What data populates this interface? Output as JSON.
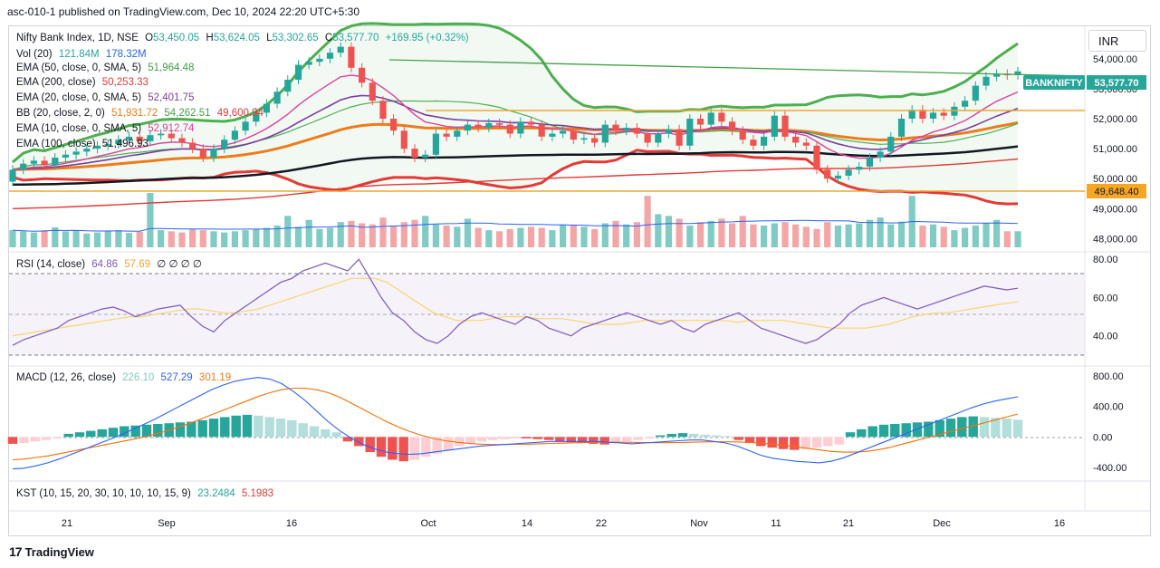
{
  "header": "asc-010-1 published on TradingView.com, Dec 10, 2024 22:20 UTC+5:30",
  "currency": "INR",
  "footer": {
    "brand": "TradingView"
  },
  "legends": {
    "main": {
      "title": "Nifty Bank Index, 1D, NSE",
      "o_label": "O",
      "o": "53,450.05",
      "h_label": "H",
      "h": "53,624.05",
      "l_label": "L",
      "l": "53,302.65",
      "c_label": "C",
      "c": "53,577.70",
      "chg": "+169.95 (+0.32%)"
    },
    "vol": {
      "label": "Vol (20)",
      "v1": "121.84M",
      "v2": "178.32M"
    },
    "ema50": {
      "label": "EMA (50, close, 0, SMA, 5)",
      "v": "51,964.48"
    },
    "ema200": {
      "label": "EMA (200, close)",
      "v": "50,253.33"
    },
    "ema20": {
      "label": "EMA (20, close, 0, SMA, 5)",
      "v": "52,401.75"
    },
    "bb": {
      "label": "BB (20, close, 2, 0)",
      "v1": "51,931.72",
      "v2": "54,262.51",
      "v3": "49,600.94"
    },
    "ema10": {
      "label": "EMA (10, close, 0, SMA, 5)",
      "v": "52,912.74"
    },
    "ema100": {
      "label": "EMA (100, close)",
      "v": "51,496.93"
    },
    "rsi": {
      "label": "RSI (14, close)",
      "v1": "64.86",
      "v2": "57.69",
      "extra": "∅ ∅ ∅ ∅"
    },
    "macd": {
      "label": "MACD (12, 26, close)",
      "v1": "226.10",
      "v2": "527.29",
      "v3": "301.19"
    },
    "kst": {
      "label": "KST (10, 15, 20, 30, 10, 10, 10, 15, 9)",
      "v1": "23.2484",
      "v2": "5.1983"
    }
  },
  "badges": {
    "symbol": "BANKNIFTY",
    "price": "53,577.70",
    "support": "49,648.40"
  },
  "colors": {
    "up": "#26a69a",
    "down": "#ef5350",
    "ema10": "#e040a0",
    "ema20": "#7b3fa0",
    "ema50": "#ef7c1a",
    "ema100": "#131722",
    "ema200": "#e53935",
    "bb_band": "#4caf50",
    "rsi": "#7e57c2",
    "macd": "#2962ff",
    "signal": "#ff6d00"
  },
  "chart_data": {
    "type": "candlestick",
    "x_axis": {
      "ticks": [
        "21",
        "Sep",
        "16",
        "Oct",
        "14",
        "22",
        "Nov",
        "11",
        "21",
        "Dec",
        "16"
      ]
    },
    "price_axis": {
      "ticks": [
        "54,000.00",
        "53,000.00",
        "52,000.00",
        "51,000.00",
        "50,000.00",
        "49,000.00",
        "48,000.00"
      ],
      "range": [
        47800,
        54600
      ]
    },
    "rsi_axis": {
      "ticks": [
        "80.00",
        "60.00",
        "40.00"
      ],
      "range": [
        28,
        82
      ]
    },
    "macd_axis": {
      "ticks": [
        "800.00",
        "400.00",
        "0.00",
        "-400.00"
      ],
      "range": [
        -520,
        860
      ]
    },
    "closes": [
      50300,
      50500,
      50600,
      50450,
      50700,
      50800,
      50900,
      51000,
      51100,
      51150,
      51300,
      51400,
      51250,
      51450,
      51500,
      51350,
      51200,
      51000,
      50700,
      51000,
      51300,
      51600,
      51900,
      52200,
      52500,
      52900,
      53300,
      53800,
      53900,
      54000,
      54200,
      54400,
      53700,
      53200,
      52600,
      52000,
      51600,
      51000,
      50700,
      50800,
      51500,
      51400,
      51600,
      51800,
      51700,
      51850,
      51800,
      51500,
      51900,
      51800,
      51400,
      51500,
      51600,
      51300,
      51350,
      51200,
      51800,
      51600,
      51700,
      51500,
      51200,
      51500,
      51650,
      51100,
      52000,
      51800,
      52200,
      51900,
      51600,
      51300,
      51100,
      51400,
      52100,
      51400,
      51200,
      51100,
      50300,
      50000,
      50100,
      50300,
      50400,
      50700,
      50900,
      51400,
      52000,
      52300,
      52000,
      52200,
      52100,
      52400,
      52600,
      53100,
      53400,
      53500,
      53450,
      53577.7
    ],
    "opens": [
      49900,
      50300,
      50500,
      50600,
      50450,
      50700,
      50800,
      50900,
      51000,
      51100,
      51150,
      51300,
      51400,
      51250,
      51450,
      51500,
      51350,
      51200,
      51000,
      50700,
      51000,
      51300,
      51600,
      51900,
      52200,
      52500,
      52900,
      53300,
      53800,
      53900,
      54000,
      54200,
      54400,
      53700,
      53200,
      52600,
      52000,
      51600,
      51000,
      50700,
      50800,
      51500,
      51400,
      51600,
      51800,
      51700,
      51850,
      51800,
      51500,
      51900,
      51800,
      51400,
      51500,
      51600,
      51300,
      51350,
      51200,
      51800,
      51600,
      51700,
      51500,
      51200,
      51500,
      51650,
      51100,
      52000,
      51800,
      52200,
      51900,
      51600,
      51300,
      51100,
      51400,
      52100,
      51400,
      51200,
      51100,
      50300,
      50000,
      50100,
      50300,
      50400,
      50700,
      50900,
      51400,
      52000,
      52300,
      52000,
      52200,
      52100,
      52400,
      52600,
      53100,
      53400,
      53500,
      53450.05
    ],
    "volume": [
      30,
      28,
      26,
      30,
      35,
      28,
      30,
      24,
      26,
      28,
      30,
      25,
      27,
      95,
      30,
      28,
      26,
      32,
      30,
      28,
      26,
      28,
      30,
      32,
      34,
      38,
      55,
      36,
      48,
      32,
      34,
      44,
      46,
      42,
      40,
      52,
      38,
      44,
      48,
      55,
      40,
      38,
      36,
      50,
      34,
      30,
      28,
      32,
      34,
      36,
      34,
      30,
      40,
      38,
      36,
      32,
      42,
      46,
      40,
      44,
      90,
      58,
      55,
      50,
      38,
      44,
      46,
      50,
      42,
      55,
      40,
      38,
      42,
      44,
      40,
      36,
      32,
      44,
      38,
      40,
      42,
      48,
      52,
      40,
      45,
      90,
      38,
      40,
      36,
      30,
      34,
      38,
      42,
      48,
      28,
      28
    ],
    "rsi": [
      35,
      38,
      40,
      42,
      44,
      48,
      50,
      52,
      54,
      55,
      53,
      50,
      52,
      54,
      55,
      56,
      50,
      45,
      42,
      48,
      52,
      56,
      60,
      64,
      68,
      70,
      74,
      76,
      78,
      76,
      74,
      80,
      70,
      60,
      52,
      48,
      42,
      38,
      36,
      40,
      46,
      50,
      52,
      50,
      48,
      46,
      50,
      48,
      44,
      42,
      40,
      44,
      46,
      48,
      50,
      52,
      50,
      48,
      46,
      48,
      44,
      42,
      46,
      48,
      50,
      52,
      48,
      44,
      42,
      40,
      38,
      36,
      38,
      42,
      46,
      52,
      56,
      58,
      60,
      58,
      56,
      54,
      56,
      58,
      60,
      62,
      64,
      66,
      65,
      64,
      64.86
    ],
    "rsi_signal": [
      40,
      41,
      42,
      43,
      44,
      45,
      46,
      47,
      48,
      49,
      50,
      50,
      51,
      52,
      53,
      54,
      54,
      53,
      52,
      52,
      53,
      54,
      56,
      58,
      60,
      62,
      64,
      66,
      68,
      70,
      70,
      70,
      68,
      64,
      60,
      56,
      52,
      50,
      48,
      48,
      48,
      49,
      50,
      50,
      50,
      49,
      49,
      49,
      48,
      47,
      46,
      46,
      46,
      47,
      48,
      48,
      48,
      48,
      48,
      48,
      48,
      48,
      47,
      48,
      48,
      48,
      48,
      47,
      46,
      45,
      44,
      44,
      44,
      44,
      45,
      46,
      48,
      50,
      51,
      52,
      52,
      53,
      54,
      55,
      56,
      57,
      57.69
    ],
    "macd_hist": [
      -90,
      -80,
      -60,
      -40,
      -20,
      40,
      60,
      80,
      100,
      120,
      140,
      150,
      160,
      170,
      180,
      190,
      200,
      220,
      240,
      260,
      280,
      290,
      280,
      260,
      240,
      220,
      180,
      140,
      100,
      60,
      -60,
      -120,
      -200,
      -260,
      -300,
      -320,
      -300,
      -260,
      -220,
      -180,
      -120,
      -80,
      -60,
      -40,
      -30,
      -20,
      -20,
      -30,
      -40,
      -60,
      -70,
      -80,
      -90,
      -100,
      -80,
      -60,
      -40,
      -20,
      20,
      40,
      50,
      40,
      30,
      20,
      10,
      -40,
      -80,
      -120,
      -140,
      -160,
      -170,
      -160,
      -140,
      -120,
      -100,
      60,
      100,
      140,
      160,
      170,
      180,
      190,
      200,
      220,
      240,
      260,
      270,
      260,
      250,
      240,
      226.1
    ],
    "macd_line": [
      -420,
      -410,
      -380,
      -340,
      -290,
      -230,
      -170,
      -110,
      -50,
      10,
      80,
      150,
      220,
      300,
      380,
      460,
      540,
      620,
      680,
      730,
      760,
      780,
      760,
      700,
      600,
      480,
      340,
      200,
      80,
      -20,
      -100,
      -160,
      -200,
      -220,
      -230,
      -220,
      -200,
      -180,
      -160,
      -140,
      -120,
      -110,
      -100,
      -90,
      -80,
      -70,
      -60,
      -60,
      -60,
      -60,
      -60,
      -70,
      -80,
      -90,
      -80,
      -70,
      -60,
      -50,
      -40,
      -40,
      -60,
      -80,
      -120,
      -180,
      -240,
      -280,
      -300,
      -320,
      -330,
      -340,
      -320,
      -280,
      -220,
      -160,
      -100,
      -40,
      20,
      80,
      140,
      200,
      260,
      320,
      380,
      430,
      470,
      500,
      527.29
    ],
    "macd_signal": [
      -300,
      -290,
      -270,
      -250,
      -220,
      -190,
      -160,
      -130,
      -100,
      -70,
      -40,
      -10,
      30,
      70,
      120,
      170,
      230,
      290,
      350,
      410,
      470,
      530,
      580,
      620,
      640,
      640,
      620,
      580,
      520,
      440,
      360,
      280,
      200,
      130,
      70,
      20,
      -20,
      -50,
      -70,
      -85,
      -95,
      -100,
      -100,
      -98,
      -95,
      -90,
      -86,
      -82,
      -78,
      -75,
      -72,
      -70,
      -70,
      -72,
      -75,
      -76,
      -76,
      -74,
      -70,
      -66,
      -64,
      -64,
      -66,
      -72,
      -82,
      -96,
      -112,
      -130,
      -150,
      -170,
      -190,
      -200,
      -200,
      -190,
      -170,
      -140,
      -100,
      -60,
      -20,
      20,
      60,
      100,
      140,
      180,
      220,
      260,
      301.19
    ]
  }
}
